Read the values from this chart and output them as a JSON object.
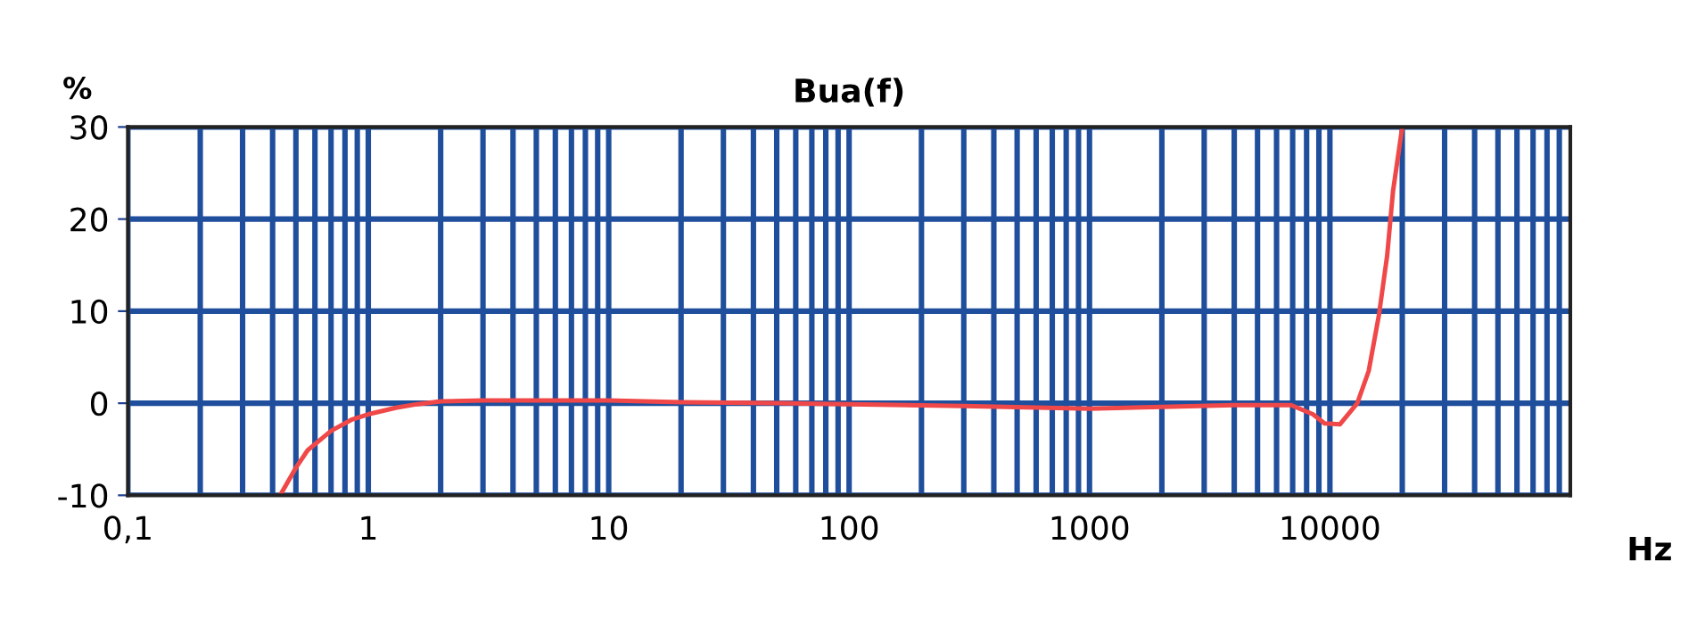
{
  "chart_data": {
    "type": "line",
    "title": "Bua(f)",
    "xlabel": "Hz",
    "ylabel": "%",
    "log": "x",
    "grid": true,
    "marker": "none",
    "line_style": "solid",
    "xlim": [
      0.1,
      100000
    ],
    "ylim": [
      -10,
      30
    ],
    "xticks": [
      {
        "value": 0.1,
        "label": "0,1"
      },
      1,
      10,
      100,
      1000,
      10000
    ],
    "yticks": [
      -10,
      0,
      10,
      20,
      30
    ],
    "series": [
      {
        "color": "#f04848",
        "x": [
          0.43,
          0.5,
          0.56,
          0.7,
          0.85,
          1.0,
          1.3,
          1.6,
          2,
          3,
          5,
          10,
          20,
          50,
          100,
          300,
          1000,
          2000,
          4000,
          6900,
          8500,
          9500,
          11000,
          13000,
          14500,
          16000,
          17300,
          18300,
          20000
        ],
        "values": [
          -10,
          -7,
          -5.1,
          -3,
          -1.8,
          -1.2,
          -0.5,
          -0.1,
          0.2,
          0.3,
          0.3,
          0.3,
          0.1,
          0,
          -0.1,
          -0.3,
          -0.6,
          -0.4,
          -0.2,
          -0.2,
          -1.2,
          -2.2,
          -2.3,
          0,
          3.5,
          9.6,
          16,
          23,
          30
        ]
      }
    ]
  }
}
